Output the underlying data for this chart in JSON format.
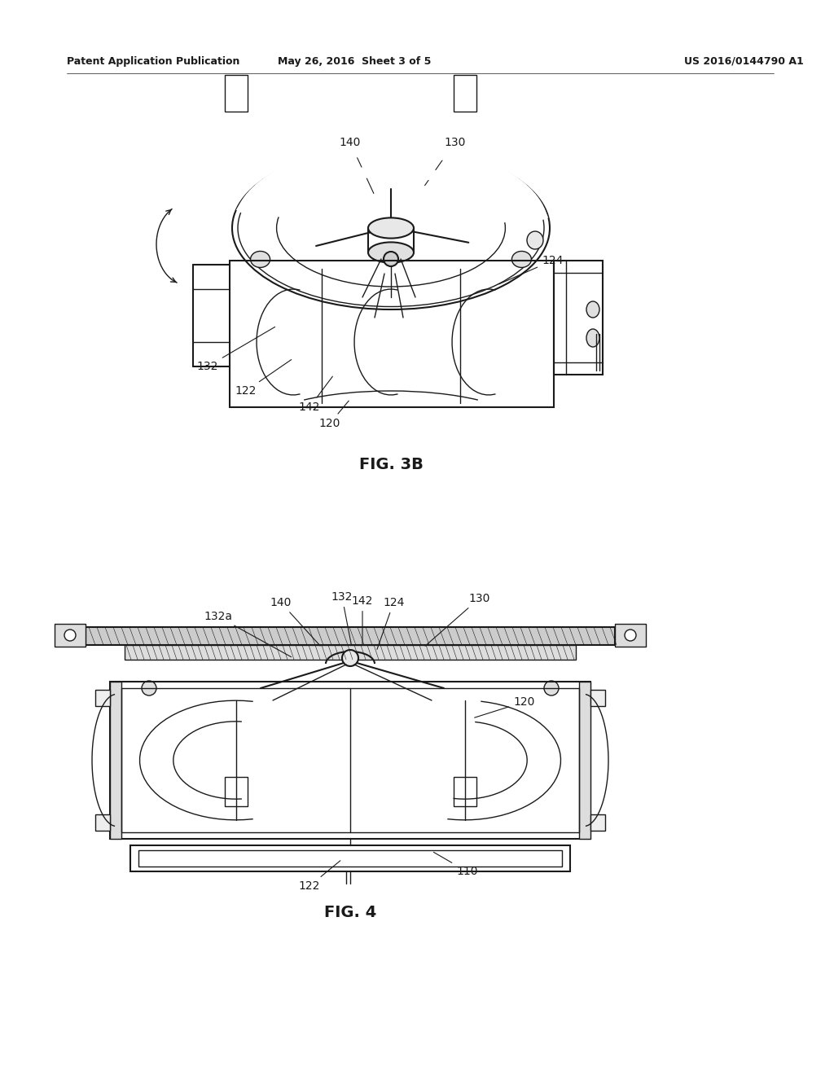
{
  "bg_color": "#ffffff",
  "line_color": "#1a1a1a",
  "text_color": "#1a1a1a",
  "header_left": "Patent Application Publication",
  "header_center": "May 26, 2016  Sheet 3 of 5",
  "header_right": "US 2016/0144790 A1",
  "fig3b_label": "FIG. 3B",
  "fig4_label": "FIG. 4"
}
